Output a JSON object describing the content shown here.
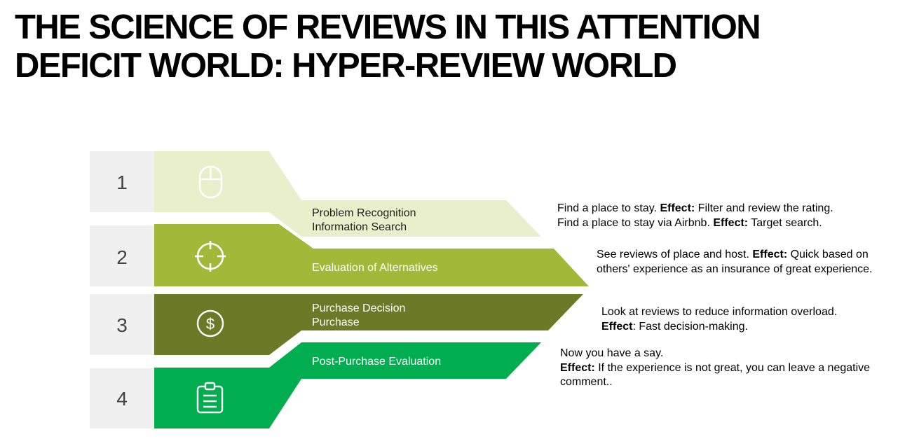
{
  "title": {
    "line1": "THE SCIENCE OF REVIEWS IN THIS ATTENTION",
    "line2": "DEFICIT WORLD: HYPER-REVIEW WORLD"
  },
  "steps": [
    {
      "number": "1",
      "icon": "mouse-icon",
      "stage_line1": "Problem Recognition",
      "stage_line2": "Information Search",
      "color": "#e8efca",
      "text_color": "#222222",
      "desc": [
        {
          "text": "Find a place to stay. ",
          "label": "Effect:",
          "effect": " Filter and review the rating."
        },
        {
          "text": "Find a place to stay via Airbnb. ",
          "label": "Effect:",
          "effect": " Target search."
        }
      ]
    },
    {
      "number": "2",
      "icon": "crosshair-icon",
      "stage_line1": "Evaluation of Alternatives",
      "stage_line2": "",
      "color": "#a2b838",
      "text_color": "#ffffff",
      "desc": [
        {
          "text": "See reviews of place and host. ",
          "label": "Effect:",
          "effect": " Quick based on"
        },
        {
          "text": "others' experience as an insurance of great experience.",
          "label": "",
          "effect": ""
        }
      ]
    },
    {
      "number": "3",
      "icon": "dollar-icon",
      "stage_line1": "Purchase Decision",
      "stage_line2": "Purchase",
      "color": "#6c7a28",
      "text_color": "#ffffff",
      "desc": [
        {
          "text": "Look at reviews to reduce information overload.",
          "label": "",
          "effect": ""
        },
        {
          "text": "",
          "label": "Effect",
          "effect": ": Fast decision-making."
        }
      ]
    },
    {
      "number": "4",
      "icon": "clipboard-icon",
      "stage_line1": "Post-Purchase Evaluation",
      "stage_line2": "",
      "color": "#00ad4f",
      "text_color": "#ffffff",
      "desc": [
        {
          "text": "Now you have a say.",
          "label": "",
          "effect": ""
        },
        {
          "text": "",
          "label": "Effect:",
          "effect": " If the experience is not great, you can leave a negative"
        },
        {
          "text": "comment..",
          "label": "",
          "effect": ""
        }
      ]
    }
  ],
  "colors": {
    "number_box": "#f0f0f0"
  }
}
